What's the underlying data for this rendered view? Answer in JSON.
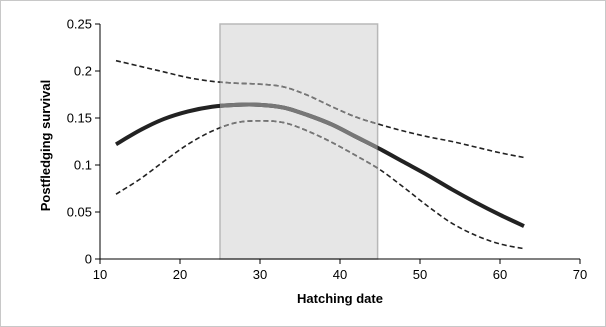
{
  "chart_data": {
    "type": "line",
    "title": "",
    "xlabel": "Hatching date",
    "ylabel": "Postfledging survival",
    "xlim": [
      10,
      70
    ],
    "ylim": [
      0,
      0.25
    ],
    "x_ticks": [
      10,
      20,
      30,
      40,
      50,
      60,
      70
    ],
    "y_ticks": [
      0,
      0.05,
      0.1,
      0.15,
      0.2,
      0.25
    ],
    "y_tick_labels": [
      "0",
      "0.05",
      "0.1",
      "0.15",
      "0.2",
      "0.25"
    ],
    "grid": false,
    "legend": "none",
    "shaded_region": {
      "x_start": 25,
      "x_end": 44.7,
      "color": "#e6e6e6"
    },
    "series": [
      {
        "role": "estimate",
        "style": "solid",
        "color": "#222222",
        "highlight_color": "#777777",
        "x": [
          12,
          15,
          18,
          21,
          24,
          27,
          30,
          33,
          36,
          39,
          42,
          45,
          48,
          51,
          54,
          57,
          60,
          63
        ],
        "values": [
          0.122,
          0.137,
          0.149,
          0.157,
          0.162,
          0.164,
          0.164,
          0.161,
          0.153,
          0.143,
          0.13,
          0.117,
          0.103,
          0.089,
          0.074,
          0.06,
          0.047,
          0.035
        ]
      },
      {
        "role": "upper bound",
        "style": "dashed",
        "color": "#222222",
        "highlight_color": "#777777",
        "x": [
          12,
          15,
          18,
          21,
          24,
          27,
          30,
          33,
          36,
          39,
          42,
          45,
          48,
          51,
          54,
          57,
          60,
          63
        ],
        "values": [
          0.211,
          0.205,
          0.199,
          0.193,
          0.189,
          0.187,
          0.186,
          0.183,
          0.174,
          0.162,
          0.151,
          0.143,
          0.136,
          0.13,
          0.125,
          0.119,
          0.113,
          0.108
        ]
      },
      {
        "role": "lower bound",
        "style": "dashed",
        "color": "#222222",
        "highlight_color": "#777777",
        "x": [
          12,
          15,
          18,
          21,
          24,
          27,
          30,
          33,
          36,
          39,
          42,
          45,
          48,
          51,
          54,
          57,
          60,
          63
        ],
        "values": [
          0.069,
          0.085,
          0.104,
          0.122,
          0.136,
          0.145,
          0.147,
          0.145,
          0.136,
          0.124,
          0.11,
          0.095,
          0.076,
          0.056,
          0.038,
          0.025,
          0.016,
          0.011
        ]
      }
    ]
  }
}
